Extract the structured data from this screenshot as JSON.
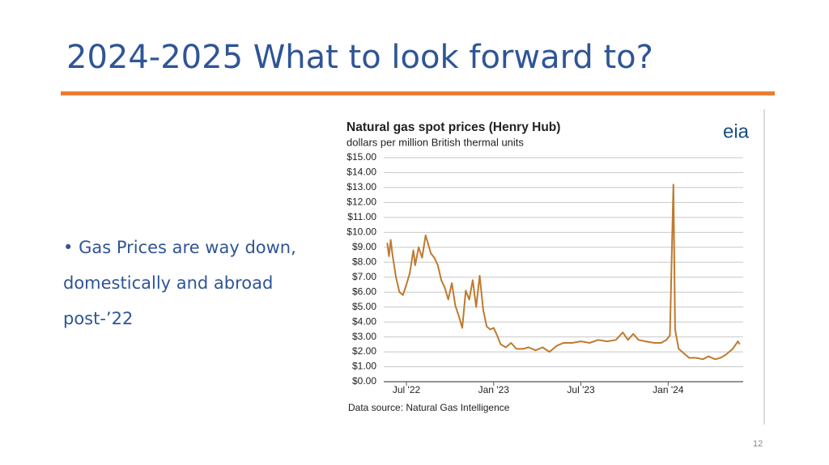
{
  "slide": {
    "title": "2024-2025 What to look forward to?",
    "bullet": "Gas Prices are way down, domestically and abroad post-’22",
    "page_number": "12"
  },
  "chart_data": {
    "type": "line",
    "title": "Natural gas spot prices (Henry Hub)",
    "subtitle": "dollars per million British thermal units",
    "logo": "eia",
    "source": "Data source: Natural Gas Intelligence",
    "x": [
      2022.39,
      2022.4,
      2022.41,
      2022.42,
      2022.44,
      2022.46,
      2022.48,
      2022.5,
      2022.52,
      2022.54,
      2022.55,
      2022.57,
      2022.59,
      2022.61,
      2022.62,
      2022.64,
      2022.66,
      2022.68,
      2022.7,
      2022.72,
      2022.74,
      2022.76,
      2022.78,
      2022.8,
      2022.82,
      2022.84,
      2022.86,
      2022.88,
      2022.9,
      2022.92,
      2022.94,
      2022.96,
      2022.98,
      2023.0,
      2023.02,
      2023.04,
      2023.07,
      2023.1,
      2023.13,
      2023.17,
      2023.2,
      2023.24,
      2023.28,
      2023.32,
      2023.36,
      2023.4,
      2023.45,
      2023.5,
      2023.55,
      2023.6,
      2023.65,
      2023.7,
      2023.74,
      2023.77,
      2023.8,
      2023.83,
      2023.87,
      2023.92,
      2023.96,
      2023.99,
      2024.01,
      2024.03,
      2024.04,
      2024.06,
      2024.09,
      2024.12,
      2024.16,
      2024.2,
      2024.23,
      2024.27,
      2024.3,
      2024.33,
      2024.37,
      2024.4,
      2024.41
    ],
    "series": [
      {
        "name": "Henry Hub",
        "color": "#bf7a30",
        "values": [
          9.3,
          8.4,
          9.5,
          8.5,
          7.0,
          6.0,
          5.8,
          6.5,
          7.3,
          8.8,
          7.8,
          9.0,
          8.3,
          9.8,
          9.4,
          8.6,
          8.3,
          7.8,
          6.8,
          6.3,
          5.5,
          6.6,
          5.1,
          4.4,
          3.6,
          6.1,
          5.5,
          6.8,
          5.0,
          7.1,
          4.8,
          3.7,
          3.5,
          3.6,
          3.1,
          2.5,
          2.3,
          2.6,
          2.2,
          2.2,
          2.3,
          2.1,
          2.3,
          2.0,
          2.4,
          2.6,
          2.6,
          2.7,
          2.6,
          2.8,
          2.7,
          2.8,
          3.3,
          2.8,
          3.2,
          2.8,
          2.7,
          2.6,
          2.6,
          2.8,
          3.1,
          13.2,
          3.5,
          2.2,
          1.9,
          1.6,
          1.6,
          1.5,
          1.7,
          1.5,
          1.6,
          1.8,
          2.2,
          2.7,
          2.5
        ]
      }
    ],
    "xlim": [
      2022.37,
      2024.43
    ],
    "xticks": [
      {
        "value": 2022.5,
        "label": "Jul '22"
      },
      {
        "value": 2023.0,
        "label": "Jan '23"
      },
      {
        "value": 2023.5,
        "label": "Jul '23"
      },
      {
        "value": 2024.0,
        "label": "Jan '24"
      }
    ],
    "ylim": [
      0,
      15
    ],
    "yticks": [
      {
        "value": 0,
        "label": "$0.00"
      },
      {
        "value": 1,
        "label": "$1.00"
      },
      {
        "value": 2,
        "label": "$2.00"
      },
      {
        "value": 3,
        "label": "$3.00"
      },
      {
        "value": 4,
        "label": "$4.00"
      },
      {
        "value": 5,
        "label": "$5.00"
      },
      {
        "value": 6,
        "label": "$6.00"
      },
      {
        "value": 7,
        "label": "$7.00"
      },
      {
        "value": 8,
        "label": "$8.00"
      },
      {
        "value": 9,
        "label": "$9.00"
      },
      {
        "value": 10,
        "label": "$10.00"
      },
      {
        "value": 11,
        "label": "$11.00"
      },
      {
        "value": 12,
        "label": "$12.00"
      },
      {
        "value": 13,
        "label": "$13.00"
      },
      {
        "value": 14,
        "label": "$14.00"
      },
      {
        "value": 15,
        "label": "$15.00"
      }
    ],
    "grid": true
  }
}
